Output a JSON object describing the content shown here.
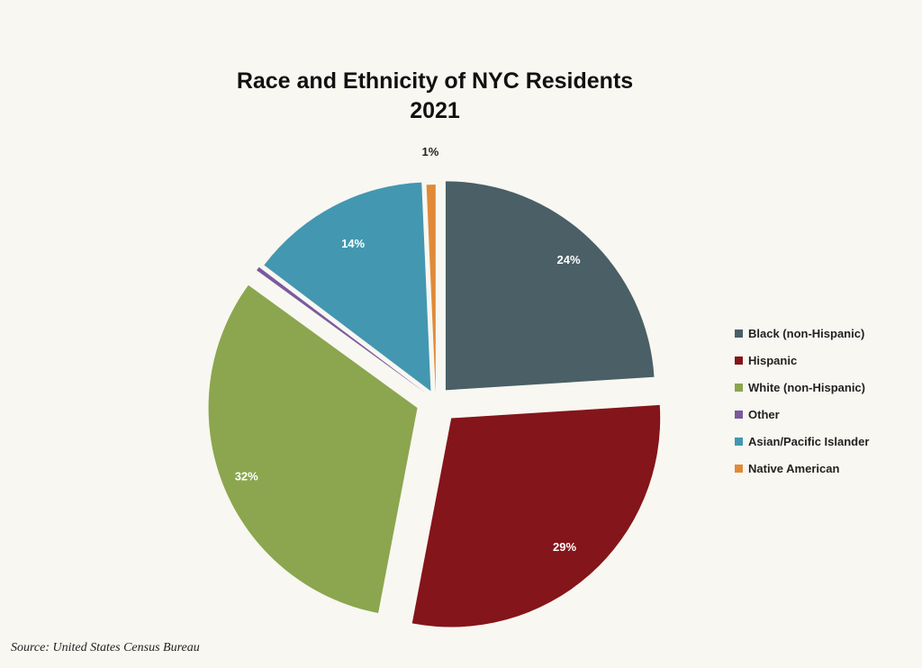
{
  "chart_data": {
    "type": "pie",
    "title": "Race and Ethnicity of NYC Residents",
    "subtitle": "2021",
    "legend_position": "right",
    "slices": [
      {
        "name": "Black (non-Hispanic)",
        "value": 24,
        "label": "24%",
        "color": "#4a5f66"
      },
      {
        "name": "Hispanic",
        "value": 29,
        "label": "29%",
        "color": "#84151a"
      },
      {
        "name": "White (non-Hispanic)",
        "value": 32,
        "label": "32%",
        "color": "#8ba64e"
      },
      {
        "name": "Other",
        "value": 0.3,
        "label": "",
        "color": "#7a5a9e"
      },
      {
        "name": "Asian/Pacific Islander",
        "value": 14,
        "label": "14%",
        "color": "#4397b1"
      },
      {
        "name": "Native American",
        "value": 0.7,
        "label": "1%",
        "color": "#e08a38"
      }
    ]
  },
  "source": "Source: United States Census Bureau"
}
